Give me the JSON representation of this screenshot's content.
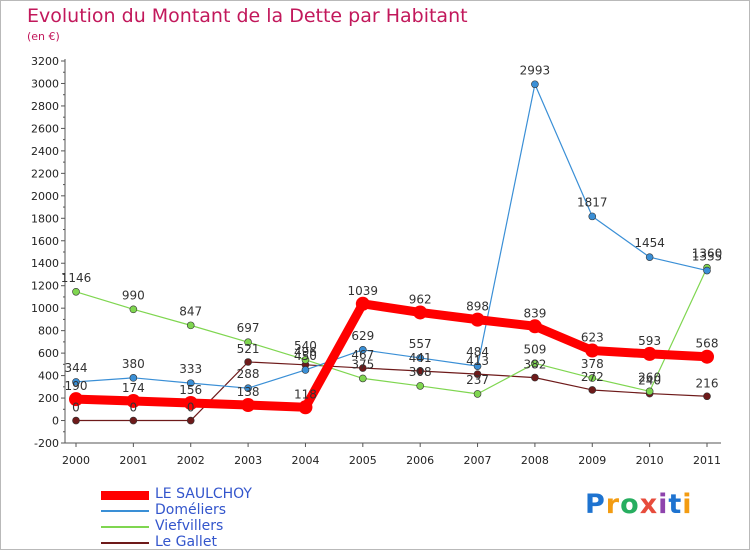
{
  "chart_data": {
    "type": "line",
    "title": "Evolution du Montant de la Dette par Habitant",
    "subtitle": "(en €)",
    "xlabel": "",
    "ylabel": "",
    "x": [
      "2000",
      "2001",
      "2002",
      "2003",
      "2004",
      "2005",
      "2006",
      "2007",
      "2008",
      "2009",
      "2010",
      "2011"
    ],
    "ylim": [
      -200,
      3200
    ],
    "ytick_step": 200,
    "grid": false,
    "legend_position": "bottom-left",
    "series": [
      {
        "name": "LE SAULCHOY",
        "color": "#ff0000",
        "values": [
          190,
          174,
          156,
          138,
          118,
          1039,
          962,
          898,
          839,
          623,
          593,
          568
        ]
      },
      {
        "name": "Doméliers",
        "color": "#3a8fd6",
        "values": [
          344,
          380,
          333,
          288,
          450,
          629,
          557,
          484,
          2993,
          1817,
          1454,
          1335
        ]
      },
      {
        "name": "Viefvillers",
        "color": "#7fd650",
        "values": [
          1146,
          990,
          847,
          697,
          540,
          375,
          308,
          237,
          509,
          378,
          260,
          1360
        ]
      },
      {
        "name": "Le Gallet",
        "color": "#6e1a1a",
        "values": [
          0,
          0,
          0,
          521,
          496,
          467,
          441,
          413,
          382,
          272,
          240,
          216
        ]
      }
    ],
    "value_labels": [
      [
        "190",
        "174",
        "156",
        "138",
        "118",
        "1039",
        "962",
        "898",
        "839",
        "623",
        "593",
        "568"
      ],
      [
        "344",
        "380",
        "333",
        "288",
        "450",
        "629",
        "557",
        "484",
        "2993",
        "1817",
        "1454",
        "1335"
      ],
      [
        "1146",
        "990",
        "847",
        "697",
        "540",
        "375",
        "308",
        "237",
        "509",
        "378",
        "260",
        "1360"
      ],
      [
        "0",
        "0",
        "0",
        "521",
        "496",
        "467",
        "441",
        "413",
        "382",
        "272",
        "240",
        "216"
      ]
    ]
  },
  "logo": {
    "letters": [
      "P",
      "r",
      "o",
      "x",
      "i",
      "t",
      "i"
    ],
    "colors": [
      "#1e73d0",
      "#f39c12",
      "#27ae60",
      "#e74c3c",
      "#8e44ad",
      "#1e73d0",
      "#f39c12"
    ]
  }
}
